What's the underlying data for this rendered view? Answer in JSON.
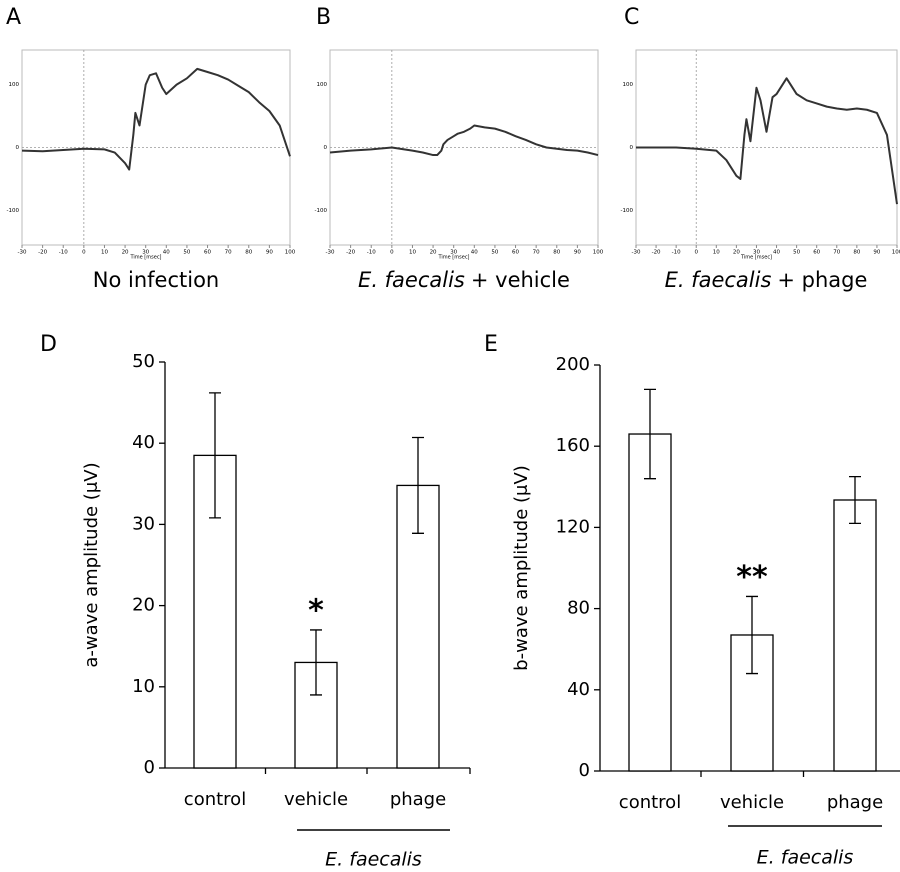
{
  "chart_data": [
    {
      "type": "line",
      "panel": "A",
      "caption": "No infection",
      "x_label": "Time [msec]",
      "x": [
        -30,
        -20,
        -10,
        0,
        10,
        15,
        20,
        22,
        24,
        25,
        27,
        30,
        32,
        35,
        38,
        40,
        45,
        50,
        55,
        60,
        65,
        70,
        75,
        80,
        85,
        90,
        95,
        100
      ],
      "series": [
        {
          "color": "#333333",
          "values": [
            -5,
            -6,
            -4,
            -2,
            -3,
            -8,
            -25,
            -35,
            20,
            55,
            35,
            100,
            115,
            118,
            95,
            85,
            100,
            110,
            125,
            120,
            115,
            108,
            98,
            88,
            72,
            58,
            35,
            -14
          ]
        }
      ],
      "xlim": [
        -30,
        100
      ],
      "xticks": [
        -30,
        -20,
        -10,
        0,
        10,
        20,
        30,
        40,
        50,
        60,
        70,
        80,
        90,
        100
      ],
      "ylim": [
        -155,
        155
      ],
      "yticks": [
        -100,
        0,
        100
      ]
    },
    {
      "type": "line",
      "panel": "B",
      "caption_species": "E. faecalis",
      "caption_treatment": "+ vehicle",
      "x_label": "Time [msec]",
      "x": [
        -30,
        -20,
        -10,
        0,
        10,
        15,
        20,
        22,
        24,
        25,
        27,
        30,
        32,
        35,
        38,
        40,
        45,
        50,
        55,
        60,
        65,
        70,
        75,
        80,
        85,
        90,
        95,
        100
      ],
      "series": [
        {
          "color": "#333333",
          "values": [
            -8,
            -5,
            -3,
            0,
            -5,
            -8,
            -12,
            -12,
            -5,
            5,
            12,
            18,
            22,
            25,
            30,
            35,
            32,
            30,
            25,
            18,
            12,
            5,
            0,
            -2,
            -4,
            -5,
            -8,
            -12
          ]
        }
      ],
      "xlim": [
        -30,
        100
      ],
      "xticks": [
        -30,
        -20,
        -10,
        0,
        10,
        20,
        30,
        40,
        50,
        60,
        70,
        80,
        90,
        100
      ],
      "ylim": [
        -155,
        155
      ],
      "yticks": [
        -100,
        0,
        100
      ]
    },
    {
      "type": "line",
      "panel": "C",
      "caption_species": "E. faecalis",
      "caption_treatment": "+ phage",
      "x_label": "Time [msec]",
      "x": [
        -30,
        -20,
        -10,
        0,
        10,
        15,
        20,
        22,
        24,
        25,
        27,
        30,
        32,
        35,
        38,
        40,
        45,
        50,
        55,
        60,
        65,
        70,
        75,
        80,
        85,
        90,
        95,
        100
      ],
      "series": [
        {
          "color": "#333333",
          "values": [
            0,
            0,
            0,
            -2,
            -5,
            -20,
            -45,
            -50,
            20,
            45,
            10,
            95,
            75,
            25,
            80,
            85,
            110,
            85,
            75,
            70,
            65,
            62,
            60,
            62,
            60,
            55,
            20,
            -90
          ]
        }
      ],
      "xlim": [
        -30,
        100
      ],
      "xticks": [
        -30,
        -20,
        -10,
        0,
        10,
        20,
        30,
        40,
        50,
        60,
        70,
        80,
        90,
        100
      ],
      "ylim": [
        -155,
        155
      ],
      "yticks": [
        -100,
        0,
        100
      ]
    },
    {
      "type": "bar",
      "panel": "D",
      "y_label": "a-wave amplitude (μV)",
      "categories": [
        "control",
        "vehicle",
        "phage"
      ],
      "values": [
        38.5,
        13,
        34.8
      ],
      "errors": [
        7.7,
        4,
        5.9
      ],
      "color": "#ffffff",
      "annotation": "*",
      "group_label": "E. faecalis",
      "ylim": [
        0,
        50
      ],
      "yticks": [
        0,
        10,
        20,
        30,
        40,
        50
      ]
    },
    {
      "type": "bar",
      "panel": "E",
      "y_label": "b-wave amplitude (μV)",
      "categories": [
        "control",
        "vehicle",
        "phage"
      ],
      "values": [
        166,
        67,
        133.5
      ],
      "errors": [
        22,
        19,
        11.5
      ],
      "color": "#ffffff",
      "annotation": "**",
      "group_label": "E. faecalis",
      "ylim": [
        0,
        200
      ],
      "yticks": [
        0,
        40,
        80,
        120,
        160,
        200
      ]
    }
  ]
}
